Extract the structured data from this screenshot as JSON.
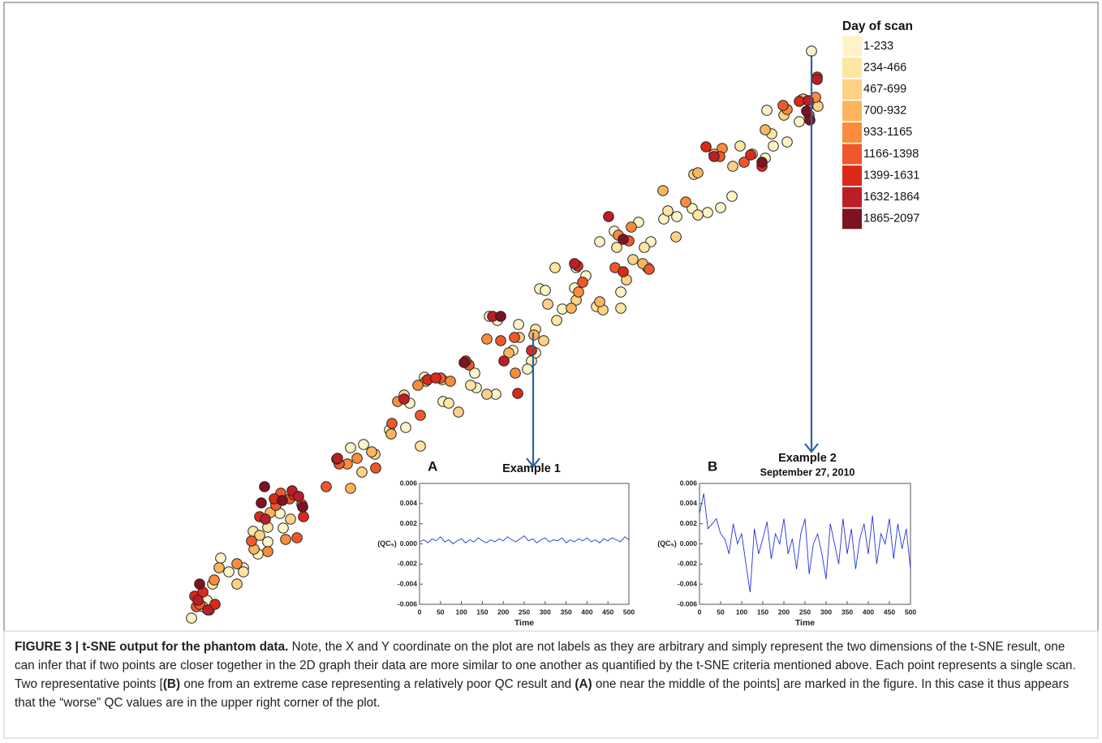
{
  "chart_data": [
    {
      "type": "scatter",
      "legend_title": "Day of scan",
      "series": [
        {
          "name": "1-233",
          "color": "#fdf3c6",
          "x": [
            236,
            255,
            272,
            300,
            282,
            330,
            345,
            349,
            318,
            432,
            448,
            480,
            500,
            546,
            505,
            587,
            611,
            632,
            603,
            665,
            672,
            693,
            710,
            722,
            739,
            757,
            787,
            818,
            834,
            853,
            872,
            888,
            902,
            927,
            943,
            953,
            970,
            985,
            945,
            1000,
            655,
            660,
            708,
            765,
            802,
            613,
            639,
            585,
            523,
            650
          ],
          "values": [
            38,
            60,
            112,
            100,
            95,
            132,
            167,
            149,
            117,
            248,
            252,
            270,
            273,
            305,
            303,
            322,
            314,
            368,
            410,
            444,
            442,
            419,
            470,
            460,
            502,
            515,
            526,
            530,
            533,
            543,
            538,
            544,
            558,
            610,
            605,
            620,
            625,
            650,
            664,
            737,
            355,
            365,
            445,
            440,
            502,
            405,
            400,
            340,
            335,
            345
          ]
        },
        {
          "name": "234-466",
          "color": "#fde6a2",
          "x": [
            262,
            300,
            340,
            330,
            518,
            545,
            553,
            660,
            686,
            760,
            794,
            823,
            860,
            912,
            951,
            1007,
            765,
            798,
            684,
            735,
            580,
            312
          ],
          "values": [
            80,
            95,
            180,
            150,
            250,
            332,
            303,
            394,
            405,
            495,
            495,
            540,
            535,
            620,
            635,
            670,
            420,
            470,
            470,
            422,
            325,
            145
          ]
        },
        {
          "name": "467-699",
          "color": "#fdd186",
          "x": [
            250,
            292,
            320,
            358,
            446,
            498,
            462,
            565,
            600,
            640,
            670,
            710,
            743,
            772,
            833,
            855,
            903,
            966,
            988,
            1008,
            675,
            780
          ],
          "values": [
            52,
            80,
            140,
            160,
            218,
            313,
            240,
            292,
            314,
            384,
            380,
            430,
            418,
            455,
            508,
            585,
            595,
            658,
            677,
            669,
            425,
            480
          ]
        },
        {
          "name": "700-932",
          "color": "#fcb45e",
          "x": [
            270,
            313,
            333,
            432,
            458,
            525,
            627,
            658,
            704,
            739,
            792,
            817,
            860,
            880,
            943,
            990,
            482
          ],
          "values": [
            100,
            123,
            168,
            198,
            243,
            330,
            365,
            387,
            420,
            428,
            475,
            565,
            587,
            610,
            640,
            678,
            265
          ]
        },
        {
          "name": "933-1165",
          "color": "#fa8c3c",
          "x": [
            264,
            292,
            352,
            428,
            440,
            490,
            555,
            600,
            635,
            713,
            762,
            778,
            845,
            890,
            970,
            1005,
            330,
            515
          ],
          "values": [
            85,
            105,
            135,
            228,
            235,
            305,
            330,
            382,
            340,
            440,
            510,
            520,
            551,
            617,
            665,
            680,
            120,
            325
          ]
        },
        {
          "name": "1166-1398",
          "color": "#f0582b",
          "x": [
            242,
            246,
            258,
            310,
            346,
            366,
            372,
            402,
            418,
            463,
            483,
            518,
            543,
            578,
            617,
            634,
            718,
            758,
            775,
            800,
            887,
            917,
            997,
            965,
            340,
            357
          ],
          "values": [
            52,
            55,
            48,
            133,
            192,
            137,
            178,
            200,
            228,
            223,
            278,
            288,
            334,
            350,
            380,
            384,
            452,
            470,
            503,
            468,
            607,
            600,
            658,
            670,
            177,
            185
          ]
        },
        {
          "name": "1399-1631",
          "color": "#db2a1a",
          "x": [
            240,
            250,
            265,
            338,
            362,
            374,
            415,
            527,
            537,
            574,
            638,
            655,
            712,
            768,
            870,
            925,
            939,
            985,
            1007,
            320
          ],
          "values": [
            65,
            70,
            55,
            185,
            190,
            163,
            234,
            332,
            334,
            355,
            315,
            368,
            472,
            465,
            619,
            609,
            595,
            675,
            705,
            163
          ]
        },
        {
          "name": "1632-1864",
          "color": "#bc1e27",
          "x": [
            244,
            256,
            360,
            368,
            416,
            498,
            621,
            708,
            750,
            880,
            1007,
            996,
            327,
            607
          ],
          "values": [
            60,
            48,
            195,
            188,
            235,
            308,
            355,
            475,
            533,
            607,
            702,
            676,
            160,
            410
          ]
        },
        {
          "name": "1865-2097",
          "color": "#7e1220",
          "x": [
            246,
            322,
            348,
            326,
            373,
            572,
            617,
            768,
            994,
            998,
            939
          ],
          "values": [
            80,
            180,
            183,
            200,
            175,
            353,
            410,
            505,
            663,
            652,
            600
          ]
        }
      ]
    },
    {
      "type": "line",
      "panel": "A",
      "title": "Example 1",
      "xlabel": "Time",
      "ylabel": "(QC₅)",
      "color": "#2233dd",
      "xlim": [
        0,
        500
      ],
      "xticks": [
        0,
        50,
        100,
        150,
        200,
        250,
        300,
        350,
        400,
        450,
        500
      ],
      "ylim": [
        -0.006,
        0.006
      ],
      "yticks": [
        0.006,
        0.004,
        0.002,
        {
          "value": 0,
          "label": "0.000"
        },
        -0.002,
        -0.004,
        -0.006
      ],
      "x": [
        0,
        10,
        20,
        30,
        40,
        50,
        60,
        70,
        80,
        90,
        100,
        110,
        120,
        130,
        140,
        150,
        160,
        170,
        180,
        190,
        200,
        210,
        220,
        230,
        240,
        250,
        260,
        270,
        280,
        290,
        300,
        310,
        320,
        330,
        340,
        350,
        360,
        370,
        380,
        390,
        400,
        410,
        420,
        430,
        440,
        450,
        460,
        470,
        480,
        490,
        500
      ],
      "values": [
        0.0002,
        0.0004,
        0.0001,
        0.0005,
        0.0003,
        0.0007,
        0.0002,
        0.0004,
        0.0,
        0.0003,
        0.0005,
        0.0001,
        0.0004,
        0.0002,
        0.0006,
        0.0003,
        0.0001,
        0.0004,
        0.0002,
        0.0005,
        0.0003,
        0.0007,
        0.0004,
        0.0002,
        0.0005,
        0.0008,
        0.0003,
        0.0005,
        0.0001,
        0.0004,
        0.0006,
        0.0002,
        0.0004,
        0.0003,
        0.0006,
        0.0001,
        0.0004,
        0.0002,
        0.0005,
        0.0003,
        0.0006,
        0.0002,
        0.0004,
        0.0001,
        0.0005,
        0.0003,
        0.0006,
        0.0004,
        0.0002,
        0.0007,
        0.0004
      ]
    },
    {
      "type": "line",
      "panel": "B",
      "title": "Example 2",
      "subtitle": "September 27, 2010",
      "xlabel": "Time",
      "ylabel": "(QC₅)",
      "color": "#2233dd",
      "xlim": [
        0,
        500
      ],
      "xticks": [
        0,
        50,
        100,
        150,
        200,
        250,
        300,
        350,
        400,
        450,
        500
      ],
      "ylim": [
        -0.006,
        0.006
      ],
      "yticks": [
        0.006,
        0.004,
        0.002,
        {
          "value": 0,
          "label": "0.000"
        },
        -0.002,
        -0.004,
        -0.006
      ],
      "x": [
        0,
        10,
        20,
        30,
        40,
        50,
        60,
        70,
        80,
        90,
        100,
        110,
        120,
        130,
        140,
        150,
        160,
        170,
        180,
        190,
        200,
        210,
        220,
        230,
        240,
        250,
        260,
        270,
        280,
        290,
        300,
        310,
        320,
        330,
        340,
        350,
        360,
        370,
        380,
        390,
        400,
        410,
        420,
        430,
        440,
        450,
        460,
        470,
        480,
        490,
        500
      ],
      "values": [
        0.003,
        0.005,
        0.0015,
        0.002,
        0.0025,
        0.001,
        0.0005,
        -0.001,
        0.002,
        0.0,
        0.001,
        -0.002,
        -0.0048,
        0.0015,
        -0.001,
        0.0005,
        0.0022,
        -0.0015,
        0.001,
        0.0,
        0.0025,
        -0.001,
        0.0005,
        -0.0025,
        0.001,
        0.0025,
        -0.003,
        0.0,
        0.001,
        -0.001,
        -0.0035,
        0.002,
        0.0,
        -0.002,
        0.0025,
        -0.001,
        0.0015,
        -0.0025,
        0.0005,
        0.002,
        -0.001,
        0.0028,
        -0.002,
        0.001,
        0.0,
        0.0025,
        -0.0015,
        0.002,
        -0.0005,
        0.0015,
        -0.0025
      ]
    }
  ],
  "caption": [
    "FIGURE 3 | t-SNE output for the phantom data.",
    "Note, the X and Y coordinate on the plot are not labels as they are arbitrary and simply represent the two dimensions of the t-SNE result, one can infer that if two points are closer together in the 2D graph their data are more similar to one another as quantified by the t-SNE criteria mentioned above. Each point represents a single scan. Two representative points [",
    "(B)",
    "one from an extreme case representing a relatively poor QC result and",
    "(A)",
    "one near the middle of the points] are marked in the figure. In this case it thus appears that the “worse” QC values are in the upper right corner of the plot."
  ]
}
